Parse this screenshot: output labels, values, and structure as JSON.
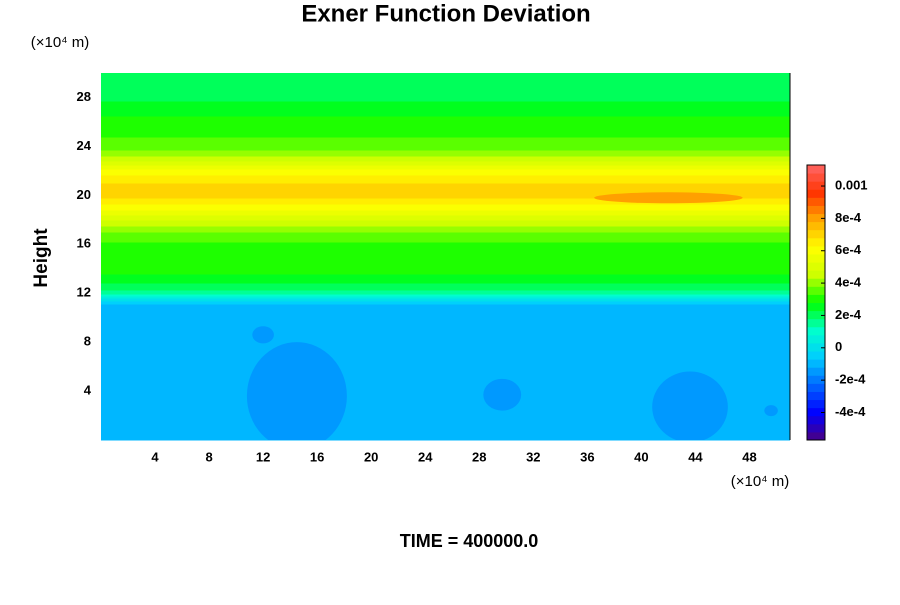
{
  "chart_data": {
    "type": "contour",
    "title": "Exner Function Deviation",
    "x_unit": "(×10⁴ m)",
    "y_unit": "(×10⁴ m)",
    "y_label": "Height",
    "time_label": "TIME = 400000.0",
    "xlim": [
      0,
      51
    ],
    "ylim": [
      0,
      30
    ],
    "xticks": [
      4,
      8,
      12,
      16,
      20,
      24,
      28,
      32,
      36,
      40,
      44,
      48
    ],
    "yticks": [
      4,
      8,
      12,
      16,
      20,
      24,
      28
    ],
    "clim": [
      -0.00057,
      0.00113
    ],
    "level_step": 5e-05,
    "colormap": [
      "#4b0082",
      "#0000ff",
      "#0066ff",
      "#00ccff",
      "#00ffcc",
      "#00ff00",
      "#ccff00",
      "#ffff00",
      "#ffaa00",
      "#ff3300",
      "#ff6666"
    ],
    "cticks": [
      {
        "value": -0.0004,
        "label": "-4e-4"
      },
      {
        "value": -0.0002,
        "label": "-2e-4"
      },
      0,
      {
        "value": 0.0002,
        "label": "2e-4"
      },
      {
        "value": 0.0004,
        "label": "4e-4"
      },
      {
        "value": 0.0006,
        "label": "6e-4"
      },
      {
        "value": 0.0008,
        "label": "8e-4"
      },
      0.001
    ],
    "profile": {
      "y": [
        0,
        11,
        11.5,
        12,
        13,
        14,
        16,
        17,
        18,
        19,
        20,
        21,
        22,
        23,
        24,
        26,
        28,
        30
      ],
      "values": [
        -0.0001,
        -0.0001,
        0,
        0.00015,
        0.00025,
        0.0003,
        0.00032,
        0.00038,
        0.00048,
        0.0006,
        0.0007,
        0.00068,
        0.0006,
        0.00045,
        0.00035,
        0.0003,
        0.00022,
        0.0002
      ]
    },
    "cells": [
      {
        "x": 14.5,
        "y": 3.6,
        "rx": 3.7,
        "ry": 4.4,
        "value": -0.00016
      },
      {
        "x": 12,
        "y": 8.6,
        "rx": 0.8,
        "ry": 0.7,
        "value": -0.00016
      },
      {
        "x": 29.7,
        "y": 3.7,
        "rx": 1.4,
        "ry": 1.3,
        "value": -0.00016
      },
      {
        "x": 43.6,
        "y": 2.7,
        "rx": 2.8,
        "ry": 2.9,
        "value": -0.00016
      },
      {
        "x": 49.6,
        "y": 2.4,
        "rx": 0.5,
        "ry": 0.45,
        "value": -0.00016
      },
      {
        "x": 42,
        "y": 19.8,
        "rx": 5.5,
        "ry": 0.45,
        "value": 0.00078
      }
    ]
  }
}
